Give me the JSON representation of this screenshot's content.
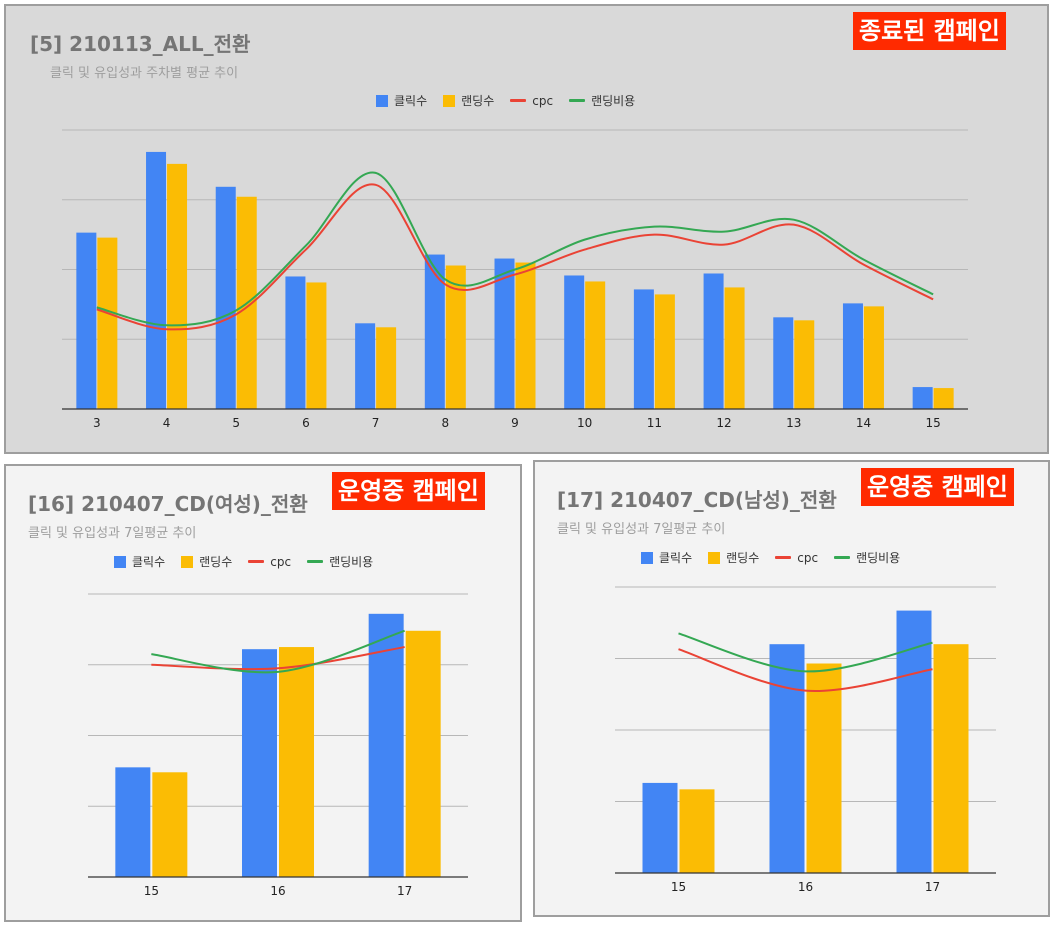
{
  "colors": {
    "clicks": "#4285f4",
    "landing": "#fbbc04",
    "cpc": "#ea4335",
    "landing_cost": "#34a853"
  },
  "chart_data": [
    {
      "type": "bar",
      "title": "[5] 210113_ALL_전환",
      "subtitle": "클릭 및 유입성과 주차별 평균 추이",
      "badge": "종료된 캠페인",
      "categories": [
        "3",
        "4",
        "5",
        "6",
        "7",
        "8",
        "9",
        "10",
        "11",
        "12",
        "13",
        "14",
        "15"
      ],
      "series": [
        {
          "name": "클릭수",
          "kind": "bar",
          "values": [
            177,
            258,
            223,
            133,
            86,
            155,
            151,
            134,
            120,
            136,
            92,
            106,
            22
          ]
        },
        {
          "name": "랜딩수",
          "kind": "bar",
          "values": [
            172,
            246,
            213,
            127,
            82,
            144,
            147,
            128,
            115,
            122,
            89,
            103,
            21
          ]
        },
        {
          "name": "cpc",
          "kind": "line",
          "values": [
            100,
            80,
            95,
            160,
            225,
            125,
            135,
            160,
            175,
            165,
            185,
            145,
            110
          ]
        },
        {
          "name": "랜딩비용",
          "kind": "line",
          "values": [
            102,
            84,
            99,
            164,
            237,
            130,
            140,
            170,
            183,
            178,
            190,
            150,
            115
          ]
        }
      ],
      "ylim": [
        0,
        280
      ],
      "grid": true,
      "legend": "top"
    },
    {
      "type": "bar",
      "title": "[16] 210407_CD(여성)_전환",
      "subtitle": "클릭 및 유입성과 7일평균 추이",
      "badge": "운영중 캠페인",
      "categories": [
        "15",
        "16",
        "17"
      ],
      "series": [
        {
          "name": "클릭수",
          "kind": "bar",
          "values": [
            155,
            322,
            372
          ]
        },
        {
          "name": "랜딩수",
          "kind": "bar",
          "values": [
            148,
            325,
            348
          ]
        },
        {
          "name": "cpc",
          "kind": "line",
          "values": [
            300,
            295,
            325
          ]
        },
        {
          "name": "랜딩비용",
          "kind": "line",
          "values": [
            315,
            290,
            348
          ]
        }
      ],
      "ylim": [
        0,
        400
      ],
      "grid": true,
      "legend": "top"
    },
    {
      "type": "bar",
      "title": "[17] 210407_CD(남성)_전환",
      "subtitle": "클릭 및 유입성과 7일평균 추이",
      "badge": "운영중 캠페인",
      "categories": [
        "15",
        "16",
        "17"
      ],
      "series": [
        {
          "name": "클릭수",
          "kind": "bar",
          "values": [
            126,
            320,
            367
          ]
        },
        {
          "name": "랜딩수",
          "kind": "bar",
          "values": [
            117,
            293,
            320
          ]
        },
        {
          "name": "cpc",
          "kind": "line",
          "values": [
            313,
            255,
            285
          ]
        },
        {
          "name": "랜딩비용",
          "kind": "line",
          "values": [
            335,
            282,
            322
          ]
        }
      ],
      "ylim": [
        0,
        400
      ],
      "grid": true,
      "legend": "top"
    }
  ]
}
